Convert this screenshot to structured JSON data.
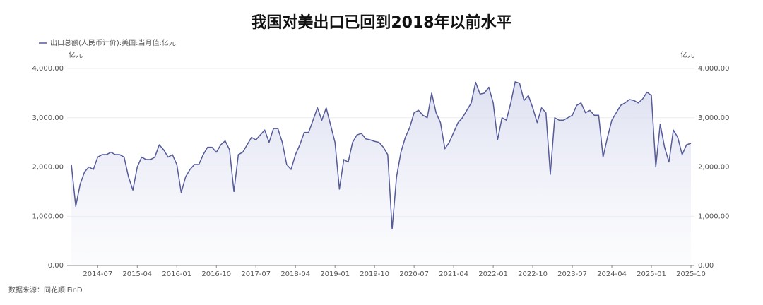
{
  "chart_data": {
    "type": "area",
    "title": "我国对美出口已回到2018年以前水平",
    "y_unit": "亿元",
    "y2_unit": "亿元",
    "source": "数据来源：同花顺iFinD",
    "categories": [
      null,
      null,
      null,
      null,
      null,
      null,
      "2014-07",
      null,
      null,
      null,
      null,
      null,
      null,
      null,
      null,
      "2015-04",
      null,
      null,
      null,
      null,
      null,
      null,
      null,
      null,
      "2016-01",
      null,
      null,
      null,
      null,
      null,
      null,
      null,
      null,
      "2016-10",
      null,
      null,
      null,
      null,
      null,
      null,
      null,
      null,
      "2017-07",
      null,
      null,
      null,
      null,
      null,
      null,
      null,
      null,
      "2018-04",
      null,
      null,
      null,
      null,
      null,
      null,
      null,
      null,
      "2019-01",
      null,
      null,
      null,
      null,
      null,
      null,
      null,
      null,
      "2019-10",
      null,
      null,
      null,
      null,
      null,
      null,
      null,
      null,
      "2020-07",
      null,
      null,
      null,
      null,
      null,
      null,
      null,
      null,
      "2021-04",
      null,
      null,
      null,
      null,
      null,
      null,
      null,
      null,
      "2022-01",
      null,
      null,
      null,
      null,
      null,
      null,
      null,
      null,
      "2022-10",
      null,
      null,
      null,
      null,
      null,
      null,
      null,
      null,
      "2023-07",
      null,
      null,
      null,
      null,
      null,
      null,
      null,
      null,
      "2024-04",
      null,
      null,
      null,
      null,
      null,
      null,
      null,
      null,
      "2025-01",
      null,
      null,
      null,
      null,
      null,
      null,
      null,
      null,
      "2025-10"
    ],
    "series": [
      {
        "name": "出口总额(人民币计价):美国:当月值:亿元",
        "color": "#565b99",
        "values": [
          2050,
          1200,
          1650,
          1900,
          2000,
          1950,
          2200,
          2250,
          2250,
          2300,
          2250,
          2250,
          2200,
          1800,
          1530,
          2000,
          2200,
          2150,
          2150,
          2200,
          2450,
          2350,
          2200,
          2250,
          2050,
          1480,
          1800,
          1950,
          2050,
          2050,
          2250,
          2400,
          2400,
          2300,
          2450,
          2530,
          2350,
          1500,
          2250,
          2300,
          2450,
          2600,
          2550,
          2650,
          2750,
          2500,
          2780,
          2780,
          2500,
          2050,
          1950,
          2250,
          2450,
          2700,
          2700,
          2950,
          3200,
          2950,
          3200,
          2850,
          2500,
          1550,
          2150,
          2100,
          2500,
          2650,
          2680,
          2570,
          2550,
          2520,
          2500,
          2400,
          2250,
          740,
          1800,
          2300,
          2600,
          2800,
          3100,
          3150,
          3050,
          3000,
          3500,
          3100,
          2900,
          2370,
          2500,
          2700,
          2900,
          3000,
          3150,
          3300,
          3720,
          3480,
          3500,
          3620,
          3300,
          2550,
          3000,
          2950,
          3300,
          3730,
          3700,
          3350,
          3450,
          3200,
          2900,
          3200,
          3100,
          1850,
          3000,
          2950,
          2950,
          3000,
          3050,
          3250,
          3300,
          3100,
          3150,
          3050,
          3050,
          2200,
          2600,
          2950,
          3100,
          3250,
          3300,
          3370,
          3350,
          3300,
          3380,
          3520,
          3450,
          2000,
          2870,
          2400,
          2100,
          2750,
          2600,
          2250,
          2450,
          2480
        ]
      }
    ],
    "ylim": [
      0,
      4000
    ],
    "yticks": [
      {
        "value": 0,
        "label": "0.00"
      },
      {
        "value": 1000,
        "label": "1,000.00"
      },
      {
        "value": 2000,
        "label": "2,000.00"
      },
      {
        "value": 3000,
        "label": "3,000.00"
      },
      {
        "value": 4000,
        "label": "4,000.00"
      }
    ],
    "y2lim": [
      0,
      4000
    ],
    "y2ticks": [
      {
        "value": 0,
        "label": "0.00"
      },
      {
        "value": 1000,
        "label": "1,000.00"
      },
      {
        "value": 2000,
        "label": "2,000.00"
      },
      {
        "value": 3000,
        "label": "3,000.00"
      },
      {
        "value": 4000,
        "label": "4,000.00"
      }
    ],
    "grid": true
  }
}
